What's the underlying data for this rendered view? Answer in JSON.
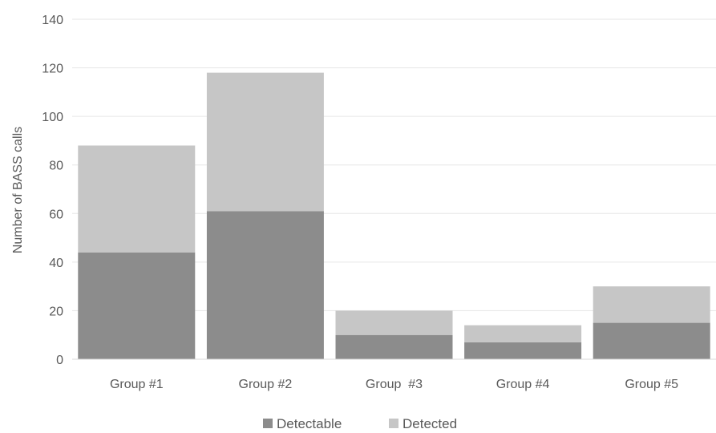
{
  "chart_data": {
    "type": "bar",
    "stacked": true,
    "categories": [
      "Group #1",
      "Group #2",
      "Group  #3",
      "Group #4",
      "Group #5"
    ],
    "series": [
      {
        "name": "Detectable",
        "values": [
          44,
          61,
          10,
          7,
          15
        ],
        "color": "#8c8c8c"
      },
      {
        "name": "Detected",
        "values": [
          44,
          57,
          10,
          7,
          15
        ],
        "color": "#c6c6c6"
      }
    ],
    "xlabel": "",
    "ylabel": "Number of  BASS calls",
    "ylim": [
      0,
      140
    ],
    "yticks": [
      0,
      20,
      40,
      60,
      80,
      100,
      120,
      140
    ],
    "grid": true,
    "legend": "bottom"
  }
}
